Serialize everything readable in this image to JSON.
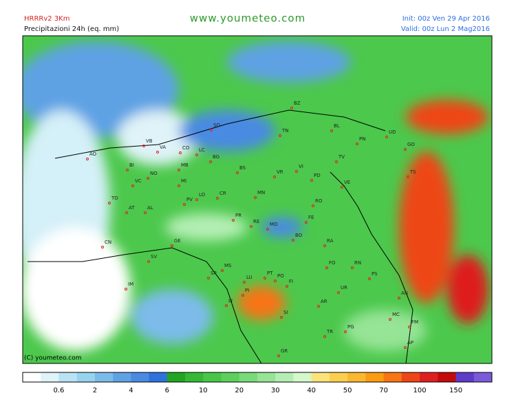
{
  "header": {
    "model": "HRRRv2 3Km",
    "product": "Precipitazioni 24h (eq. mm)",
    "site": "www.youmeteo.com",
    "init": "Init: 00z Ven 29 Apr 2016",
    "valid": "Valid: 00z Lun 2 Mag2016"
  },
  "copyright": "(C) youmeteo.com",
  "legend": {
    "colors": [
      "#ffffff",
      "#dff3f8",
      "#b8e3f3",
      "#96d3ef",
      "#7bbbea",
      "#5fa2e4",
      "#4a8ae2",
      "#2e72dd",
      "#22a522",
      "#35b935",
      "#48c648",
      "#5cd05c",
      "#78da78",
      "#96e496",
      "#b4eeb4",
      "#d4f8cc",
      "#fbe27a",
      "#fbcf4e",
      "#fbb82e",
      "#fa9b12",
      "#f77512",
      "#ee4618",
      "#de1f1f",
      "#c40a0a",
      "#5c3cc8",
      "#7a5ad8",
      "#9678e2",
      "#b49aee",
      "#cab4f6"
    ],
    "ticks": [
      0.6,
      2,
      4,
      6,
      10,
      20,
      30,
      40,
      50,
      70,
      100,
      150
    ]
  },
  "cities": [
    "AO",
    "BI",
    "VB",
    "VA",
    "CO",
    "LC",
    "SO",
    "BZ",
    "TN",
    "BL",
    "UD",
    "PN",
    "TV",
    "GO",
    "TS",
    "VE",
    "PD",
    "VI",
    "VR",
    "BS",
    "BG",
    "MB",
    "MI",
    "NO",
    "VC",
    "TO",
    "AT",
    "AL",
    "PV",
    "LO",
    "CR",
    "MN",
    "PR",
    "RE",
    "MO",
    "FE",
    "RO",
    "BO",
    "RA",
    "FO",
    "RN",
    "PS",
    "UR",
    "AN",
    "MC",
    "FM",
    "AP",
    "PG",
    "TR",
    "SI",
    "AR",
    "FI",
    "PT",
    "PO",
    "LU",
    "PI",
    "LI",
    "MS",
    "SP",
    "GE",
    "SV",
    "IM",
    "CN",
    "GR"
  ]
}
